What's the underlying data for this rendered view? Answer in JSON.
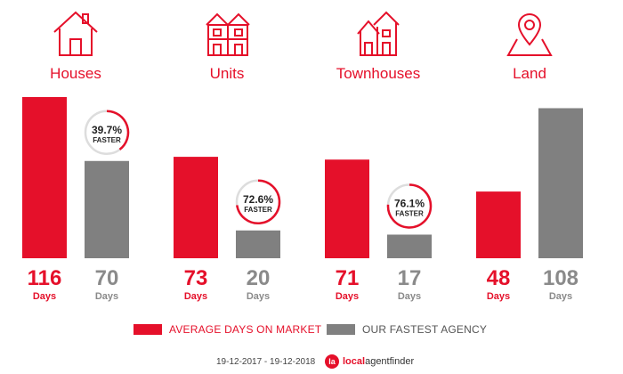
{
  "colors": {
    "market": "#e5102a",
    "agency": "#808080",
    "label_gray": "#8a8a8a",
    "ring_track": "#dddddd"
  },
  "categories": [
    {
      "label": "Houses",
      "icon": "house-icon"
    },
    {
      "label": "Units",
      "icon": "units-icon"
    },
    {
      "label": "Townhouses",
      "icon": "townhouses-icon"
    },
    {
      "label": "Land",
      "icon": "land-icon"
    }
  ],
  "chart_data": {
    "type": "bar",
    "categories": [
      "Houses",
      "Units",
      "Townhouses",
      "Land"
    ],
    "series": [
      {
        "name": "AVERAGE DAYS ON MARKET",
        "values": [
          116,
          73,
          71,
          48
        ]
      },
      {
        "name": "OUR FASTEST AGENCY",
        "values": [
          70,
          20,
          17,
          108
        ]
      }
    ],
    "unit_label": "Days",
    "faster": [
      {
        "percent": "39.7%",
        "label": "FASTER",
        "value": 39.7
      },
      {
        "percent": "72.6%",
        "label": "FASTER",
        "value": 72.6
      },
      {
        "percent": "76.1%",
        "label": "FASTER",
        "value": 76.1
      },
      null
    ],
    "ylim": [
      0,
      116
    ]
  },
  "legend": {
    "market": "AVERAGE DAYS ON MARKET",
    "agency": "OUR FASTEST AGENCY"
  },
  "footer": {
    "date_range": "19-12-2017 - 19-12-2018",
    "brand_bold": "local",
    "brand_rest": "agentfinder",
    "brand_logo": "la"
  }
}
